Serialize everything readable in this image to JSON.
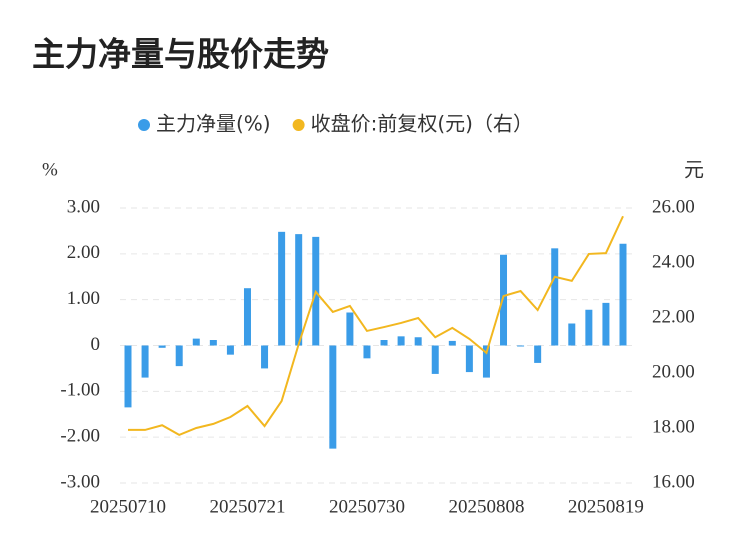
{
  "chart_data": {
    "type": "bar_line",
    "title": "主力净量与股价走势",
    "y_label": "%",
    "y2_label": "元",
    "categories": [
      "20250710",
      null,
      null,
      null,
      null,
      null,
      null,
      "20250721",
      null,
      null,
      null,
      null,
      null,
      null,
      "20250730",
      null,
      null,
      null,
      null,
      null,
      null,
      "20250808",
      null,
      null,
      null,
      null,
      null,
      null,
      "20250819",
      null
    ],
    "series": [
      {
        "name": "主力净量(%)",
        "type": "bar",
        "color": "#3a9ce8",
        "values": [
          -1.35,
          -0.7,
          -0.05,
          -0.45,
          0.15,
          0.12,
          -0.2,
          1.25,
          -0.5,
          2.48,
          2.43,
          2.37,
          -2.25,
          0.72,
          -0.28,
          0.12,
          0.2,
          0.18,
          -0.62,
          0.1,
          -0.58,
          -0.7,
          1.98,
          -0.02,
          -0.38,
          2.12,
          0.48,
          0.78,
          0.93,
          2.22
        ]
      },
      {
        "name": "收盘价:前复权(元)（右）",
        "type": "line",
        "axis": "y2",
        "color": "#f2b71f",
        "values": [
          17.93,
          17.93,
          18.1,
          17.75,
          18.0,
          18.15,
          18.4,
          18.8,
          18.07,
          18.98,
          21.05,
          22.95,
          22.22,
          22.44,
          21.53,
          21.67,
          21.82,
          22.0,
          21.3,
          21.64,
          21.24,
          20.73,
          22.8,
          22.98,
          22.29,
          23.5,
          23.35,
          24.33,
          24.36,
          25.7
        ]
      }
    ],
    "ylim": [
      -3,
      3
    ],
    "yticks": [
      {
        "value": -3,
        "label": "-3.00"
      },
      {
        "value": -2,
        "label": "-2.00"
      },
      {
        "value": -1,
        "label": "-1.00"
      },
      0,
      {
        "value": 1,
        "label": "1.00"
      },
      {
        "value": 2,
        "label": "2.00"
      },
      {
        "value": 3,
        "label": "3.00"
      }
    ],
    "y2lim": [
      16,
      26
    ],
    "y2ticks": [
      {
        "value": 16,
        "label": "16.00"
      },
      {
        "value": 18,
        "label": "18.00"
      },
      {
        "value": 20,
        "label": "20.00"
      },
      {
        "value": 22,
        "label": "22.00"
      },
      {
        "value": 24,
        "label": "24.00"
      },
      {
        "value": 26,
        "label": "26.00"
      }
    ],
    "grid": true,
    "legend": "top"
  }
}
